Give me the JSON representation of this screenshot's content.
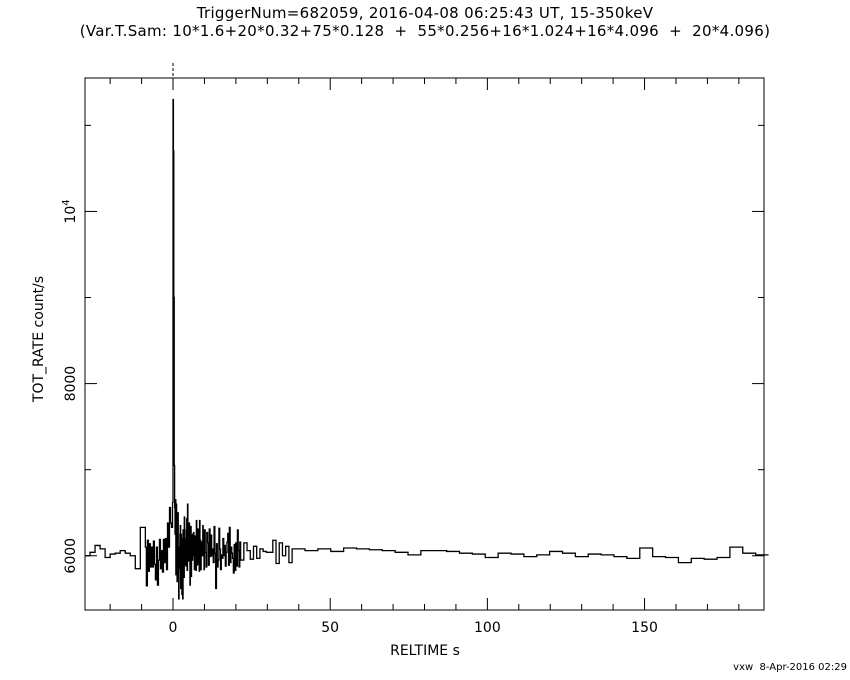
{
  "title_line1": "TriggerNum=682059, 2016-04-08 06:25:43 UT, 15-350keV",
  "title_line2": "(Var.T.Sam: 10*1.6+20*0.32+75*0.128  +  55*0.256+16*1.024+16*4.096  +  20*4.096)",
  "footer": "vxw  8-Apr-2016 02:29",
  "chart_data": {
    "type": "line",
    "step": true,
    "xlabel": "RELTIME  s",
    "ylabel": "TOT_RATE  count/s",
    "xlim": [
      -28,
      188
    ],
    "ylim": [
      5370,
      11550
    ],
    "xticks": [
      0,
      50,
      100,
      150
    ],
    "yticks": [
      {
        "value": 6000,
        "label": "6000"
      },
      {
        "value": 8000,
        "label": "8000"
      },
      {
        "value": 10000,
        "label": "10^4"
      }
    ],
    "y_minor_ticks": [
      7000,
      9000,
      11000
    ],
    "trigger_marker_x": 0,
    "series": [
      {
        "x": [
          -28,
          -26.4,
          -24.8,
          -23.2,
          -21.6,
          -20,
          -18.4,
          -16.8,
          -15.2,
          -13.6,
          -12,
          -10.4,
          -8.8,
          -8.48,
          -8.16,
          -7.84,
          -7.52,
          -7.2,
          -6.88,
          -6.56,
          -6.24,
          -5.92,
          -5.6,
          -5.28,
          -4.96,
          -4.64,
          -4.32,
          -4,
          -3.68,
          -3.36,
          -3.04,
          -2.72,
          -2.4,
          -2.08,
          -1.76,
          -1.44,
          -1.12,
          -0.8,
          -0.48,
          -0.16,
          0,
          0.128,
          0.256,
          0.384,
          0.512,
          0.64,
          0.768,
          0.896,
          1.024,
          1.152,
          1.28,
          1.408,
          1.536,
          1.664,
          1.792,
          1.92,
          2.048,
          2.176,
          2.304,
          2.432,
          2.56,
          2.688,
          2.816,
          2.944,
          3.072,
          3.2,
          3.328,
          3.456,
          3.584,
          3.712,
          3.84,
          3.968,
          4.096,
          4.224,
          4.352,
          4.48,
          4.608,
          4.736,
          4.864,
          4.992,
          5.12,
          5.248,
          5.376,
          5.504,
          5.632,
          5.76,
          5.888,
          6.016,
          6.144,
          6.272,
          6.4,
          6.528,
          6.656,
          6.784,
          6.912,
          7.04,
          7.168,
          7.296,
          7.424,
          7.552,
          7.68,
          7.808,
          7.936,
          8.064,
          8.192,
          8.32,
          8.448,
          8.576,
          8.704,
          8.832,
          8.96,
          9.088,
          9.216,
          9.344,
          9.472,
          9.6,
          9.728,
          9.856,
          9.984,
          10.24,
          10.496,
          10.752,
          11.008,
          11.264,
          11.52,
          11.776,
          12.032,
          12.288,
          12.544,
          12.8,
          13.056,
          13.312,
          13.568,
          13.824,
          14.08,
          14.336,
          14.592,
          14.848,
          15.104,
          15.36,
          15.616,
          15.872,
          16.128,
          16.384,
          16.64,
          16.896,
          17.152,
          17.408,
          17.664,
          17.92,
          18.176,
          18.432,
          18.688,
          18.944,
          19.2,
          19.456,
          19.712,
          19.968,
          20.224,
          20.48,
          20.736,
          20.992,
          21.248,
          21.504,
          22.528,
          23.552,
          24.576,
          25.6,
          26.624,
          27.648,
          28.672,
          29.696,
          30.72,
          31.744,
          32.768,
          33.792,
          34.816,
          35.84,
          36.864,
          37.888,
          41.984,
          46.08,
          50.176,
          54.272,
          58.368,
          62.464,
          66.56,
          70.656,
          74.752,
          78.848,
          82.944,
          87.04,
          91.136,
          95.232,
          99.328,
          103.424,
          107.52,
          111.616,
          115.712,
          119.808,
          123.904,
          128,
          132.096,
          136.192,
          140.288,
          144.384,
          148.48,
          152.576,
          156.672,
          160.768,
          164.864,
          168.96,
          173.056,
          177.152,
          181.248,
          185.344
        ],
        "y": [
          6000,
          6040,
          6120,
          6080,
          5980,
          6020,
          6030,
          6060,
          6030,
          6000,
          5850,
          6330,
          6100,
          5650,
          6180,
          5820,
          6140,
          5870,
          6100,
          5870,
          6170,
          5900,
          5720,
          6100,
          5660,
          5950,
          6190,
          5850,
          6060,
          5810,
          6190,
          5920,
          6200,
          5840,
          6380,
          6100,
          6560,
          6380,
          6330,
          6620,
          11300,
          10700,
          9000,
          7050,
          6560,
          6250,
          6650,
          5780,
          6600,
          6250,
          5700,
          6000,
          6500,
          6100,
          5500,
          6050,
          5850,
          6250,
          6350,
          5620,
          6250,
          6000,
          5550,
          6200,
          5500,
          6300,
          6060,
          5750,
          6450,
          5900,
          6200,
          6000,
          5880,
          6300,
          6430,
          5830,
          6600,
          6250,
          6200,
          5940,
          6380,
          6210,
          5660,
          5960,
          6340,
          5760,
          6240,
          6160,
          5950,
          6250,
          6000,
          6270,
          6100,
          5840,
          6230,
          5840,
          6170,
          5830,
          6410,
          5890,
          6270,
          5900,
          6310,
          6210,
          5910,
          5820,
          6410,
          6010,
          6180,
          5840,
          6160,
          6020,
          6000,
          6100,
          6350,
          6120,
          6000,
          5840,
          6300,
          6040,
          5870,
          6270,
          6150,
          5890,
          6310,
          5990,
          6240,
          6000,
          6080,
          5920,
          6340,
          6030,
          5620,
          6140,
          5870,
          5950,
          6320,
          6080,
          5840,
          6010,
          5970,
          6200,
          6000,
          6120,
          5880,
          6040,
          6160,
          6260,
          5890,
          6330,
          5920,
          6100,
          6030,
          5970,
          5800,
          6130,
          5830,
          6150,
          5880,
          6300,
          6060,
          5870,
          6160,
          5950,
          6150,
          6060,
          5960,
          6110,
          5970,
          6080,
          6050,
          6040,
          6040,
          6180,
          5910,
          6150,
          6000,
          6110,
          5920,
          6080,
          6060,
          6080,
          6050,
          6090,
          6080,
          6070,
          6060,
          6040,
          6010,
          6060,
          6060,
          6050,
          6030,
          6020,
          5980,
          6030,
          6020,
          5990,
          6010,
          6050,
          6030,
          5990,
          6020,
          6010,
          5990,
          5970,
          6090,
          5990,
          5980,
          5920,
          5970,
          5960,
          5980,
          6100,
          6030,
          6010
        ]
      }
    ]
  }
}
